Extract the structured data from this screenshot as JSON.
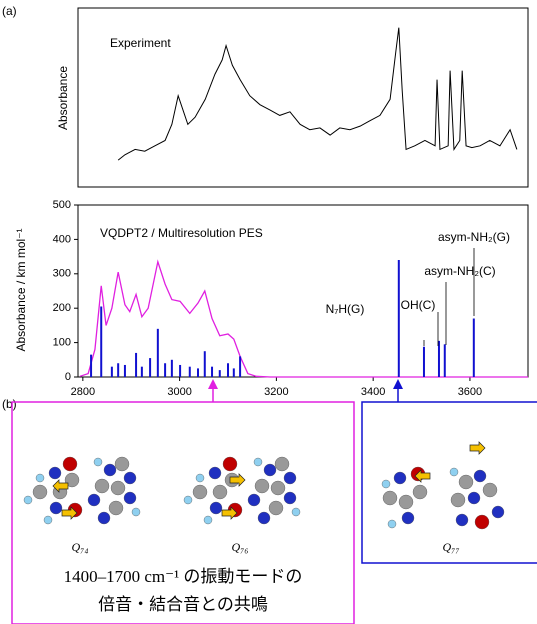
{
  "chart_data": [
    {
      "type": "line",
      "title": "Experiment",
      "ylabel": "Absorbance",
      "color": "#000000",
      "xlim": [
        2790,
        3720
      ],
      "ylim": [
        0,
        1
      ],
      "x": [
        2873,
        2887,
        2908,
        2928,
        2949,
        2970,
        2984,
        2997,
        3007,
        3017,
        3032,
        3053,
        3073,
        3088,
        3096,
        3109,
        3125,
        3145,
        3166,
        3187,
        3207,
        3228,
        3249,
        3269,
        3290,
        3311,
        3331,
        3352,
        3373,
        3393,
        3414,
        3435,
        3447,
        3453,
        3460,
        3468,
        3486,
        3507,
        3528,
        3532,
        3538,
        3555,
        3559,
        3567,
        3579,
        3584,
        3592,
        3604,
        3621,
        3641,
        3662,
        3683,
        3697
      ],
      "values": [
        0.15,
        0.18,
        0.21,
        0.2,
        0.23,
        0.26,
        0.35,
        0.51,
        0.43,
        0.35,
        0.39,
        0.49,
        0.63,
        0.71,
        0.79,
        0.68,
        0.6,
        0.51,
        0.46,
        0.43,
        0.4,
        0.42,
        0.35,
        0.32,
        0.33,
        0.29,
        0.33,
        0.32,
        0.34,
        0.37,
        0.4,
        0.49,
        0.76,
        0.89,
        0.54,
        0.21,
        0.23,
        0.26,
        0.23,
        0.6,
        0.21,
        0.23,
        0.65,
        0.21,
        0.26,
        0.65,
        0.23,
        0.22,
        0.23,
        0.26,
        0.23,
        0.32,
        0.21
      ]
    },
    {
      "type": "line",
      "title": "VQDPT2 / Multiresolution PES",
      "ylabel": "Absorbance / km mol⁻¹",
      "xlim": [
        2790,
        3720
      ],
      "xticks": [
        2800,
        3000,
        3200,
        3400,
        3600
      ],
      "ylim": [
        0,
        500
      ],
      "yticks": [
        0,
        100,
        200,
        300,
        400,
        500
      ],
      "series": [
        {
          "type": "line",
          "color": "#e020e0",
          "x": [
            2794,
            2811,
            2825,
            2838,
            2848,
            2860,
            2873,
            2887,
            2897,
            2910,
            2922,
            2935,
            2955,
            2970,
            2984,
            3001,
            3021,
            3038,
            3052,
            3067,
            3083,
            3100,
            3112,
            3125,
            3141,
            3158,
            3187,
            3720
          ],
          "values": [
            2,
            10,
            80,
            265,
            150,
            200,
            305,
            210,
            190,
            240,
            175,
            200,
            335,
            270,
            225,
            220,
            185,
            215,
            250,
            170,
            120,
            125,
            110,
            60,
            10,
            2,
            0,
            0
          ]
        },
        {
          "type": "stick",
          "color": "#1010d0",
          "x": [
            2817,
            2838,
            2860,
            2873,
            2887,
            2910,
            2922,
            2939,
            2955,
            2970,
            2984,
            3001,
            3021,
            3038,
            3052,
            3067,
            3083,
            3100,
            3112,
            3125,
            3453,
            3505,
            3536,
            3548,
            3608
          ],
          "values": [
            65,
            205,
            30,
            40,
            35,
            70,
            30,
            55,
            140,
            40,
            50,
            35,
            30,
            25,
            75,
            30,
            20,
            40,
            25,
            60,
            340,
            88,
            105,
            95,
            170
          ]
        }
      ],
      "annotations": [
        "N₇H(G)",
        "OH(C)",
        "asym-NH₂(C)",
        "asym-NH₂(G)"
      ]
    }
  ],
  "figure": {
    "panel_labels": [
      "(a)",
      "(b)"
    ],
    "modes": [
      "Q₇₄",
      "Q₇₆",
      "Q₇₇"
    ],
    "caption": [
      "1400–1700 cm⁻¹ の振動モードの",
      "倍音・結合音との共鳴"
    ]
  }
}
